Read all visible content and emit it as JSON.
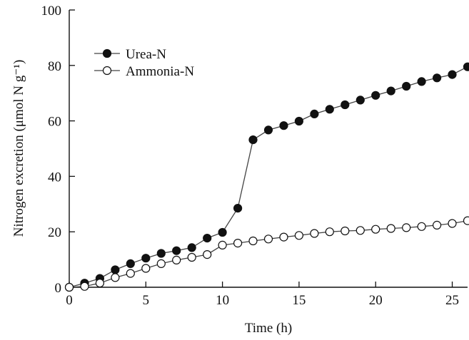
{
  "chart_data": {
    "type": "line",
    "xlabel": "Time (h)",
    "ylabel": "Nitrogen excretion (μmol N g⁻¹)",
    "xlim": [
      0,
      26
    ],
    "ylim": [
      0,
      100
    ],
    "xticks": [
      0,
      5,
      10,
      15,
      20,
      25
    ],
    "yticks": [
      0,
      20,
      40,
      60,
      80,
      100
    ],
    "grid": false,
    "legend_position": "top-left",
    "series": [
      {
        "name": "Urea-N",
        "marker": "filled-circle",
        "x": [
          0,
          1,
          2,
          3,
          4,
          5,
          6,
          7,
          8,
          9,
          10,
          11,
          12,
          13,
          14,
          15,
          16,
          17,
          18,
          19,
          20,
          21,
          22,
          23,
          24,
          25,
          26
        ],
        "values": [
          0,
          1.5,
          3.2,
          6.3,
          8.5,
          10.5,
          12.2,
          13.2,
          14.3,
          17.7,
          19.8,
          28.5,
          53.2,
          56.7,
          58.3,
          59.9,
          62.5,
          64.2,
          65.8,
          67.5,
          69.2,
          70.8,
          72.5,
          74.2,
          75.5,
          76.7,
          79.5
        ]
      },
      {
        "name": "Ammonia-N",
        "marker": "open-circle",
        "x": [
          0,
          1,
          2,
          3,
          4,
          5,
          6,
          7,
          8,
          9,
          10,
          11,
          12,
          13,
          14,
          15,
          16,
          17,
          18,
          19,
          20,
          21,
          22,
          23,
          24,
          25,
          26
        ],
        "values": [
          0,
          0.3,
          1.5,
          3.5,
          5.0,
          6.8,
          8.5,
          9.8,
          10.8,
          11.8,
          15.2,
          15.9,
          16.7,
          17.4,
          18.1,
          18.7,
          19.4,
          20.0,
          20.3,
          20.5,
          20.9,
          21.2,
          21.5,
          21.9,
          22.4,
          23.0,
          24.0
        ]
      }
    ]
  }
}
